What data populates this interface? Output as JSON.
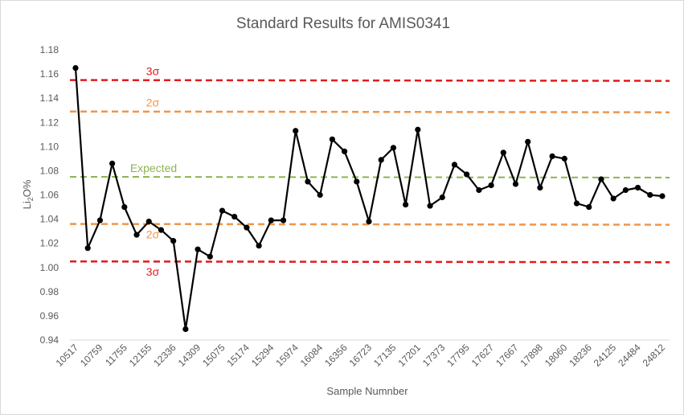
{
  "chart_data": {
    "type": "line",
    "title": "Standard Results for AMIS0341",
    "xlabel": "Sample Numnber",
    "ylabel": {
      "main": "Li",
      "sub": "2",
      "rest": "O%"
    },
    "ylim": [
      0.94,
      1.18
    ],
    "yticks": [
      0.94,
      0.96,
      0.98,
      1.0,
      1.02,
      1.04,
      1.06,
      1.08,
      1.1,
      1.12,
      1.14,
      1.16,
      1.18
    ],
    "ytick_labels": [
      "0.94",
      "0.96",
      "0.98",
      "1.00",
      "1.02",
      "1.04",
      "1.06",
      "1.08",
      "1.10",
      "1.12",
      "1.14",
      "1.16",
      "1.18"
    ],
    "x_tick_labels": [
      "10517",
      "10759",
      "11755",
      "12155",
      "12336",
      "14309",
      "15075",
      "15174",
      "15294",
      "15974",
      "16084",
      "16356",
      "16723",
      "17135",
      "17201",
      "17373",
      "17795",
      "17627",
      "17667",
      "17898",
      "18060",
      "18236",
      "24125",
      "24484",
      "24812"
    ],
    "series": [
      {
        "color": "#000000",
        "values": [
          1.165,
          1.016,
          1.039,
          1.086,
          1.05,
          1.027,
          1.038,
          1.031,
          1.022,
          0.949,
          1.015,
          1.009,
          1.047,
          1.042,
          1.033,
          1.018,
          1.039,
          1.039,
          1.113,
          1.071,
          1.06,
          1.106,
          1.096,
          1.071,
          1.038,
          1.089,
          1.099,
          1.052,
          1.114,
          1.051,
          1.058,
          1.085,
          1.077,
          1.064,
          1.068,
          1.095,
          1.069,
          1.104,
          1.066,
          1.092,
          1.09,
          1.053,
          1.05,
          1.073,
          1.057,
          1.064,
          1.066,
          1.06,
          1.059
        ]
      }
    ],
    "reference_lines": [
      {
        "label": "3σ",
        "value": 1.155,
        "color": "#e31a1c",
        "label_side": "above"
      },
      {
        "label": "2σ",
        "value": 1.129,
        "color": "#f0964b",
        "label_side": "above"
      },
      {
        "label": "Expected",
        "value": 1.075,
        "color": "#8db451",
        "label_side": "above"
      },
      {
        "label": "2σ",
        "value": 1.036,
        "color": "#f0964b",
        "label_side": "below"
      },
      {
        "label": "3σ",
        "value": 1.005,
        "color": "#e31a1c",
        "label_side": "below"
      }
    ],
    "grid": false,
    "legend": "none"
  }
}
